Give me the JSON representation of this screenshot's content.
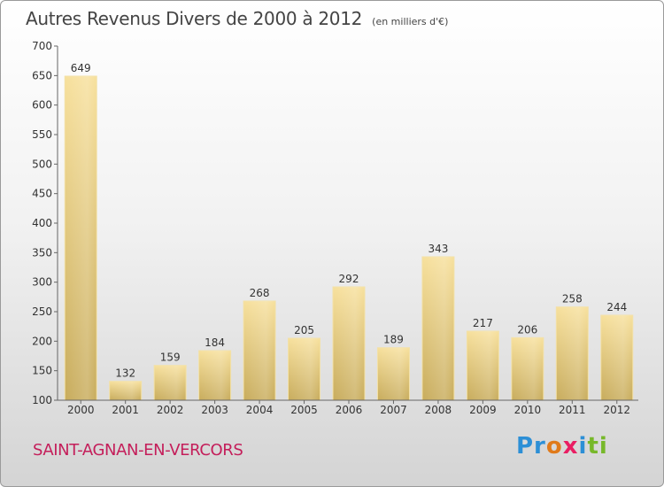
{
  "header": {
    "title": "Autres Revenus Divers de 2000 à 2012",
    "subtitle": "(en milliers d'€)"
  },
  "footer": {
    "commune": "SAINT-AGNAN-EN-VERCORS",
    "logo_text": "Proxiti"
  },
  "colors": {
    "bar_light": "#f5dc96",
    "bar_dark": "#c8ac5c",
    "commune": "#c41e5a"
  },
  "chart_data": {
    "type": "bar",
    "title": "Autres Revenus Divers de 2000 à 2012",
    "subtitle": "(en milliers d'€)",
    "categories": [
      "2000",
      "2001",
      "2002",
      "2003",
      "2004",
      "2005",
      "2006",
      "2007",
      "2008",
      "2009",
      "2010",
      "2011",
      "2012"
    ],
    "values": [
      649,
      132,
      159,
      184,
      268,
      205,
      292,
      189,
      343,
      217,
      206,
      258,
      244
    ],
    "ylim": [
      100,
      700
    ],
    "yticks": [
      100,
      150,
      200,
      250,
      300,
      350,
      400,
      450,
      500,
      550,
      600,
      650,
      700
    ],
    "grid": false,
    "legend": "none"
  }
}
